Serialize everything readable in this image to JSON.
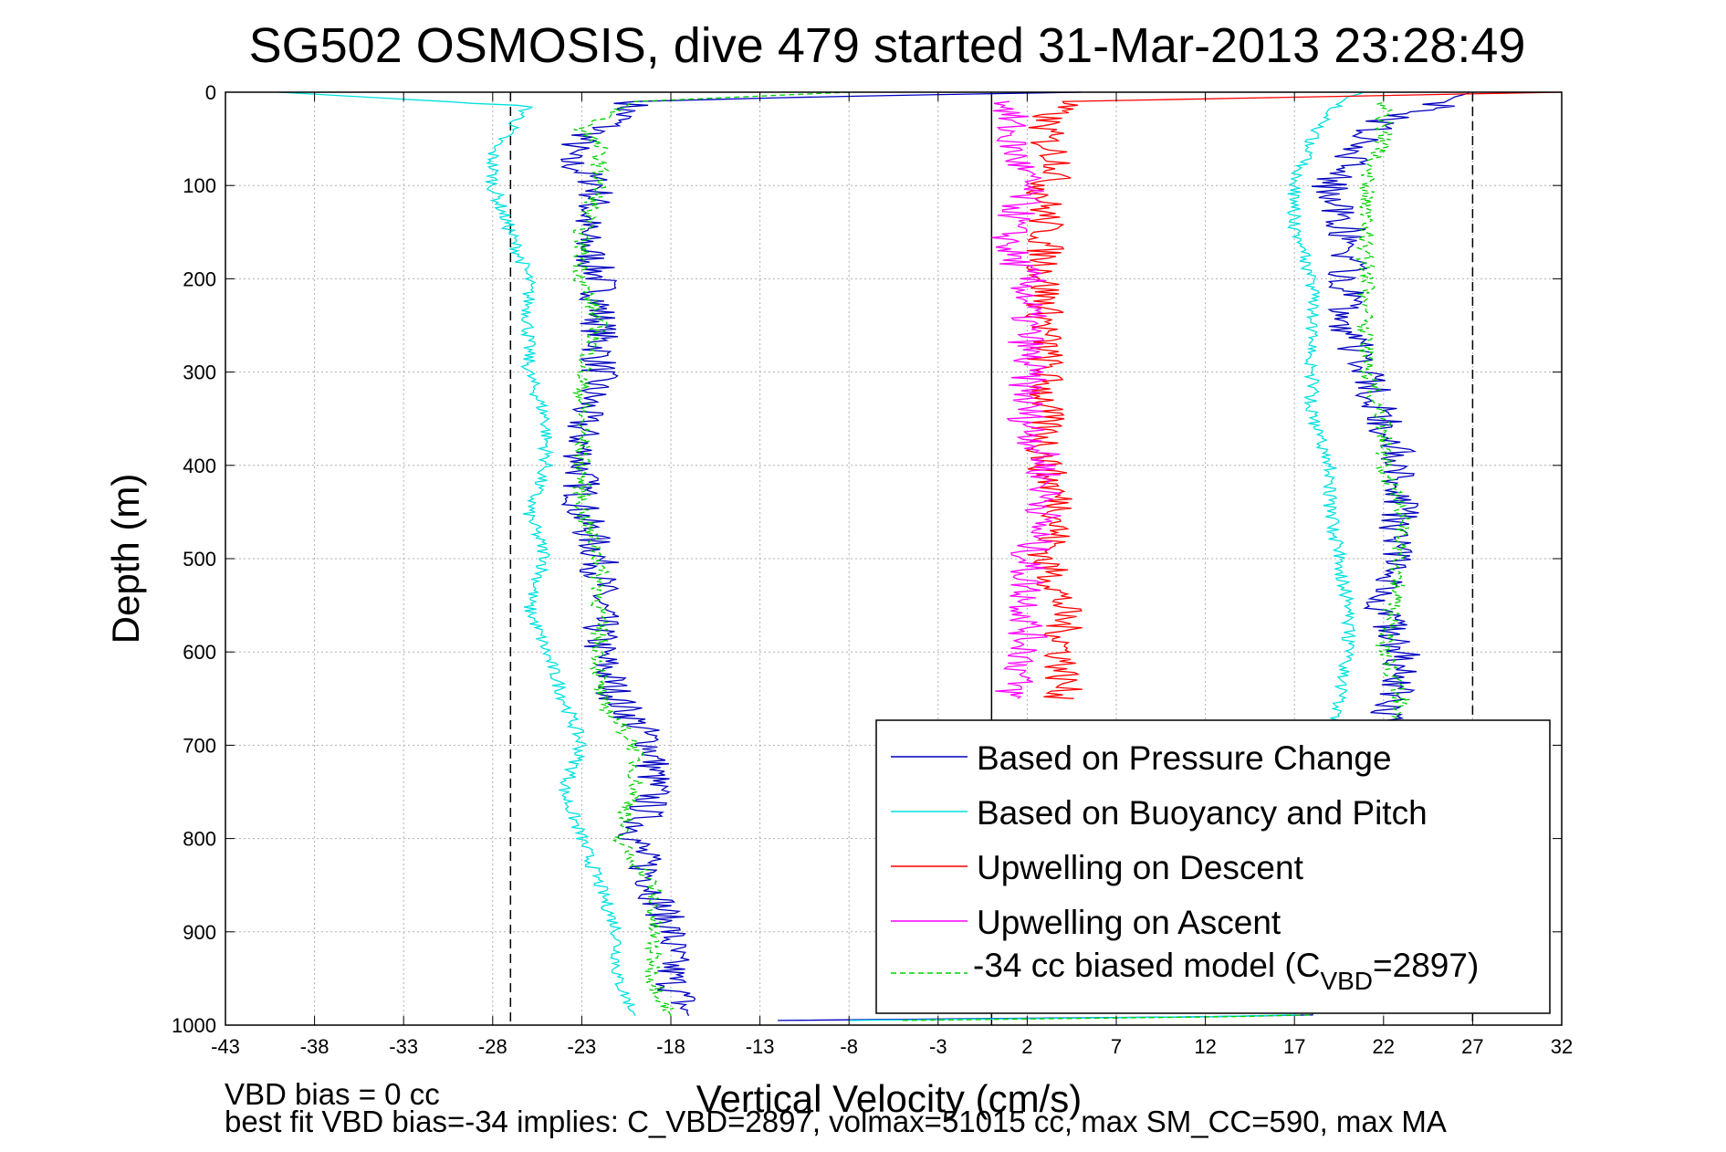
{
  "chart_data": {
    "type": "line",
    "title": "SG502 OSMOSIS, dive 479 started 31-Mar-2013 23:28:49",
    "xlabel": "Vertical Velocity (cm/s)",
    "ylabel": "Depth (m)",
    "xlim": [
      -43,
      32
    ],
    "ylim": [
      0,
      1000
    ],
    "y_reversed": true,
    "grid": true,
    "x_ticks": [
      "-43",
      "-38",
      "-33",
      "-28",
      "-23",
      "-18",
      "-13",
      "-8",
      "-3",
      "2",
      "7",
      "12",
      "17",
      "22",
      "27",
      "32"
    ],
    "y_ticks": [
      "0",
      "100",
      "200",
      "300",
      "400",
      "500",
      "600",
      "700",
      "800",
      "900",
      "1000"
    ],
    "reference_lines": [
      {
        "x": -27,
        "style": "dashed",
        "color": "#000000"
      },
      {
        "x": 27,
        "style": "dashed",
        "color": "#000000"
      },
      {
        "x": 0,
        "style": "solid",
        "color": "#000000"
      }
    ],
    "legend_placement": "bottom-right",
    "legend": {
      "pressure": "Based on Pressure Change",
      "buoyancy": "Based on Buoyancy and Pitch",
      "upwelling_descent": "Upwelling on Descent",
      "upwelling_ascent": "Upwelling on Ascent",
      "model_prefix": "-34 cc biased model (C",
      "model_sub": "VBD",
      "model_suffix": "=2897)"
    },
    "series": [
      {
        "key": "pressure",
        "color": "#0000bf",
        "dash": false,
        "descent": [
          [
            5,
            0
          ],
          [
            -10,
            5
          ],
          [
            -20,
            10
          ],
          [
            -21,
            30
          ],
          [
            -23,
            50
          ],
          [
            -24,
            70
          ],
          [
            -22,
            100
          ],
          [
            -23,
            150
          ],
          [
            -22,
            200
          ],
          [
            -22,
            250
          ],
          [
            -22,
            300
          ],
          [
            -23,
            350
          ],
          [
            -23,
            400
          ],
          [
            -23,
            450
          ],
          [
            -22,
            500
          ],
          [
            -22,
            550
          ],
          [
            -22,
            600
          ],
          [
            -21,
            650
          ],
          [
            -19,
            700
          ],
          [
            -19,
            750
          ],
          [
            -20,
            800
          ],
          [
            -19,
            850
          ],
          [
            -18,
            900
          ],
          [
            -18,
            950
          ],
          [
            -17,
            990
          ]
        ],
        "ascent": [
          [
            -12,
            995
          ],
          [
            18,
            990
          ],
          [
            22,
            700
          ],
          [
            23,
            600
          ],
          [
            22,
            550
          ],
          [
            23,
            450
          ],
          [
            23,
            400
          ],
          [
            22,
            350
          ],
          [
            21,
            300
          ],
          [
            20,
            250
          ],
          [
            20,
            200
          ],
          [
            20,
            150
          ],
          [
            19,
            100
          ],
          [
            21,
            50
          ],
          [
            22,
            30
          ],
          [
            25,
            15
          ],
          [
            26,
            5
          ],
          [
            27,
            0
          ]
        ]
      },
      {
        "key": "buoyancy",
        "color": "#00e0e0",
        "dash": false,
        "descent": [
          [
            -40,
            0
          ],
          [
            -26,
            15
          ],
          [
            -27,
            40
          ],
          [
            -28,
            60
          ],
          [
            -28,
            100
          ],
          [
            -27,
            150
          ],
          [
            -26,
            200
          ],
          [
            -26,
            300
          ],
          [
            -25,
            350
          ],
          [
            -25,
            400
          ],
          [
            -26,
            450
          ],
          [
            -25,
            500
          ],
          [
            -26,
            550
          ],
          [
            -25,
            600
          ],
          [
            -24,
            650
          ],
          [
            -23,
            700
          ],
          [
            -24,
            750
          ],
          [
            -23,
            800
          ],
          [
            -22,
            850
          ],
          [
            -21,
            900
          ],
          [
            -21,
            950
          ],
          [
            -20,
            990
          ]
        ],
        "ascent": [
          [
            -8,
            995
          ],
          [
            17,
            990
          ],
          [
            19,
            700
          ],
          [
            20,
            600
          ],
          [
            20,
            550
          ],
          [
            19,
            450
          ],
          [
            19,
            400
          ],
          [
            18,
            350
          ],
          [
            18,
            300
          ],
          [
            18,
            250
          ],
          [
            18,
            200
          ],
          [
            17,
            150
          ],
          [
            17,
            100
          ],
          [
            18,
            50
          ],
          [
            19,
            20
          ],
          [
            20,
            5
          ],
          [
            21,
            0
          ]
        ]
      },
      {
        "key": "upwelling_descent",
        "color": "#ff0000",
        "dash": false,
        "points": [
          [
            32,
            0
          ],
          [
            4,
            10
          ],
          [
            3,
            30
          ],
          [
            3,
            50
          ],
          [
            4,
            80
          ],
          [
            3,
            100
          ],
          [
            3,
            150
          ],
          [
            3,
            200
          ],
          [
            3,
            250
          ],
          [
            3,
            300
          ],
          [
            3,
            350
          ],
          [
            3,
            400
          ],
          [
            4,
            450
          ],
          [
            3,
            500
          ],
          [
            4,
            550
          ],
          [
            4,
            600
          ],
          [
            4,
            650
          ]
        ]
      },
      {
        "key": "upwelling_ascent",
        "color": "#ff00ff",
        "dash": false,
        "points": [
          [
            1,
            10
          ],
          [
            1,
            50
          ],
          [
            2,
            100
          ],
          [
            1,
            150
          ],
          [
            1,
            170
          ],
          [
            2,
            200
          ],
          [
            2,
            250
          ],
          [
            2,
            300
          ],
          [
            2,
            350
          ],
          [
            3,
            400
          ],
          [
            3,
            450
          ],
          [
            2,
            500
          ],
          [
            2,
            550
          ],
          [
            2,
            600
          ],
          [
            1,
            650
          ]
        ]
      },
      {
        "key": "model",
        "color": "#00d000",
        "dash": true,
        "descent": [
          [
            -8,
            0
          ],
          [
            -20,
            10
          ],
          [
            -23,
            40
          ],
          [
            -22,
            60
          ],
          [
            -22,
            100
          ],
          [
            -23,
            150
          ],
          [
            -23,
            200
          ],
          [
            -22,
            250
          ],
          [
            -23,
            300
          ],
          [
            -23,
            350
          ],
          [
            -23,
            400
          ],
          [
            -23,
            450
          ],
          [
            -22,
            500
          ],
          [
            -22,
            550
          ],
          [
            -22,
            600
          ],
          [
            -22,
            650
          ],
          [
            -20,
            700
          ],
          [
            -20,
            750
          ],
          [
            -21,
            800
          ],
          [
            -19,
            850
          ],
          [
            -19,
            900
          ],
          [
            -19,
            950
          ],
          [
            -18,
            990
          ]
        ],
        "ascent": [
          [
            -5,
            995
          ],
          [
            18,
            990
          ],
          [
            23,
            700
          ],
          [
            23,
            650
          ],
          [
            22,
            600
          ],
          [
            23,
            500
          ],
          [
            23,
            450
          ],
          [
            22,
            400
          ],
          [
            22,
            350
          ],
          [
            21,
            300
          ],
          [
            21,
            250
          ],
          [
            21,
            200
          ],
          [
            21,
            150
          ],
          [
            21,
            100
          ],
          [
            22,
            50
          ],
          [
            22,
            20
          ],
          [
            22,
            0
          ]
        ]
      }
    ]
  },
  "notes": {
    "line1": "VBD bias = 0 cc",
    "line2": "best fit VBD bias=-34 implies: C_VBD=2897, volmax=51015 cc, max SM_CC=590, max MA"
  },
  "colors": {
    "axes": "#000000",
    "grid": "#b0b0b0",
    "background": "#ffffff"
  }
}
